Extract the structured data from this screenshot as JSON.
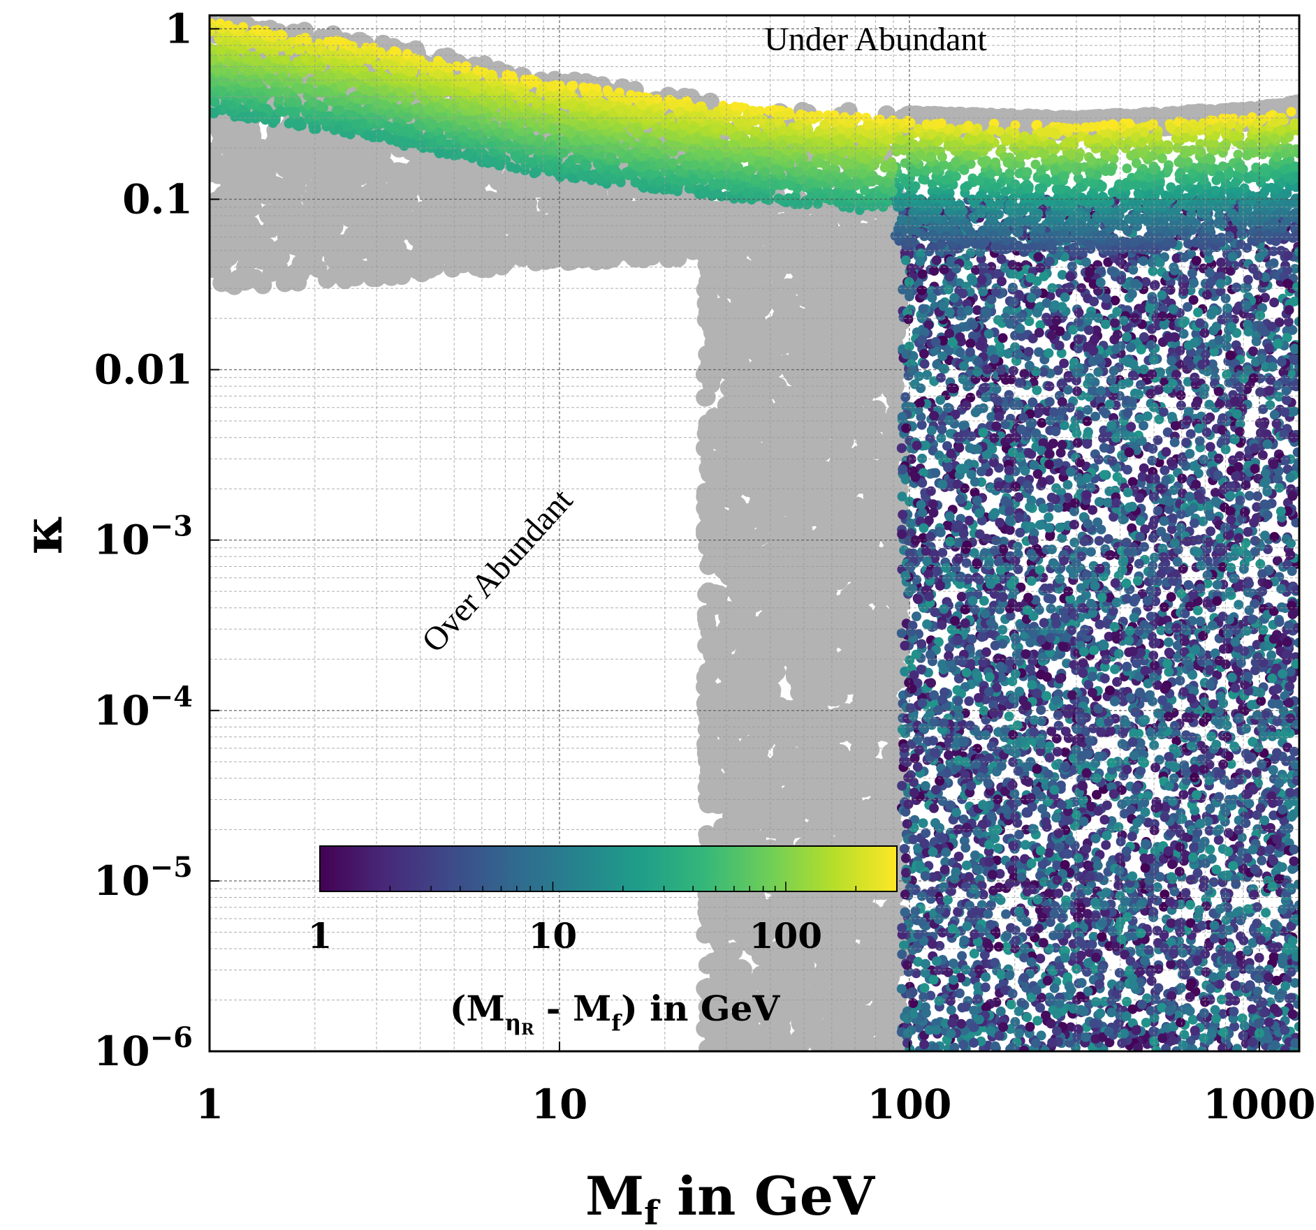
{
  "chart_data": {
    "type": "scatter",
    "xlabel": "M",
    "xlabel_sub": "f",
    "xlabel_tail": " in GeV",
    "ylabel": "κ",
    "xscale": "log",
    "yscale": "log",
    "xlim": [
      1,
      1300
    ],
    "ylim": [
      1e-06,
      1.2
    ],
    "grid": true,
    "x_ticks": [
      {
        "value": 1,
        "label": "1"
      },
      {
        "value": 10,
        "label": "10"
      },
      {
        "value": 100,
        "label": "100"
      },
      {
        "value": 1000,
        "label": "1000"
      }
    ],
    "y_ticks": [
      {
        "value": 1,
        "label": "1",
        "exp": ""
      },
      {
        "value": 0.1,
        "label": "0.1",
        "exp": ""
      },
      {
        "value": 0.01,
        "label": "0.01",
        "exp": ""
      },
      {
        "value": 0.001,
        "label": "10",
        "exp": "−3"
      },
      {
        "value": 0.0001,
        "label": "10",
        "exp": "−4"
      },
      {
        "value": 1e-05,
        "label": "10",
        "exp": "−5"
      },
      {
        "value": 1e-06,
        "label": "10",
        "exp": "−6"
      }
    ],
    "annotations": [
      {
        "id": "under",
        "text": "Under Abundant",
        "color": "#ff0000",
        "x": 80,
        "y": 0.75,
        "rotate": 0
      },
      {
        "id": "over",
        "text": "Over Abundant",
        "color": "#ff0000",
        "x": 7,
        "y": 0.0006,
        "rotate": -48
      }
    ],
    "colorbar": {
      "title_prefix": "(M",
      "title_sub": "η",
      "title_subsub": "R",
      "title_suffix": " - M",
      "title_sub2": "f",
      "title_tail": ") in GeV",
      "scale": "log",
      "range": [
        1,
        300
      ],
      "ticks": [
        {
          "value": 1,
          "label": "1"
        },
        {
          "value": 10,
          "label": "10"
        },
        {
          "value": 100,
          "label": "100"
        }
      ],
      "colormap": "viridis",
      "stops": [
        "#440154",
        "#482878",
        "#3e4989",
        "#31688e",
        "#26828e",
        "#1f9e89",
        "#35b779",
        "#6ece58",
        "#b5de2b",
        "#fde725"
      ]
    },
    "series": [
      {
        "kind": "excluded",
        "color": "#b3b3b3",
        "regions": [
          {
            "shape": "upper-band",
            "boundary_top": [
              [
                1,
                1.2
              ],
              [
                3,
                0.85
              ],
              [
                8,
                0.55
              ],
              [
                20,
                0.42
              ],
              [
                50,
                0.35
              ],
              [
                100,
                0.31
              ],
              [
                300,
                0.29
              ],
              [
                1000,
                0.33
              ],
              [
                1300,
                0.36
              ]
            ]
          },
          {
            "shape": "upper-left-block",
            "x_range": [
              1,
              26
            ],
            "lower_edge": [
              [
                1,
                0.03
              ],
              [
                3,
                0.034
              ],
              [
                10,
                0.042
              ],
              [
                26,
                0.045
              ]
            ]
          },
          {
            "shape": "vertical-strip",
            "x_range": [
              26,
              95
            ],
            "y_range": [
              1e-06,
              0.1
            ]
          }
        ]
      },
      {
        "kind": "allowed",
        "color_by": "mass splitting (GeV)",
        "regions": [
          {
            "shape": "relic-band",
            "x_range": [
              1,
              1300
            ],
            "typical_splitting": [
              30,
              300
            ]
          },
          {
            "shape": "high-mass-block",
            "x_range": [
              95,
              1300
            ],
            "y_range": [
              1e-06,
              0.1
            ],
            "typical_splitting": [
              1,
              20
            ]
          }
        ]
      }
    ]
  }
}
